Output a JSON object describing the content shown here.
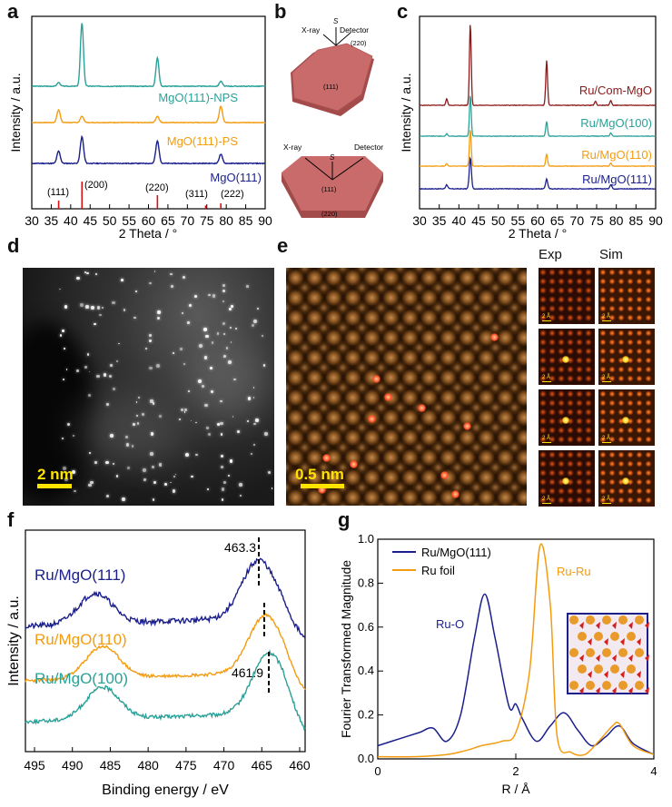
{
  "panel_labels": {
    "a": "a",
    "b": "b",
    "c": "c",
    "d": "d",
    "e": "e",
    "f": "f",
    "g": "g"
  },
  "panel_a": {
    "xlabel": "2 Theta / °",
    "ylabel": "Intensity / a.u.",
    "xticks": [
      "30",
      "35",
      "40",
      "45",
      "50",
      "55",
      "60",
      "65",
      "70",
      "75",
      "80",
      "85",
      "90"
    ],
    "series": [
      {
        "name": "MgO(111)-NPS",
        "color": "#2aa198"
      },
      {
        "name": "MgO(111)-PS",
        "color": "#f39c12"
      },
      {
        "name": "MgO(111)",
        "color": "#1a1f8c"
      }
    ],
    "ref_lines": [
      {
        "hkl": "(111)",
        "x": 36.9,
        "h": 0.3
      },
      {
        "hkl": "(200)",
        "x": 42.9,
        "h": 1.0
      },
      {
        "hkl": "(220)",
        "x": 62.3,
        "h": 0.5
      },
      {
        "hkl": "(311)",
        "x": 74.7,
        "h": 0.12
      },
      {
        "hkl": "(222)",
        "x": 78.6,
        "h": 0.2
      }
    ]
  },
  "panel_b": {
    "top": {
      "xray": "X-ray",
      "s": "S",
      "detector": "Detector",
      "facet_top": "(220)",
      "facet_face": "(111)"
    },
    "bottom": {
      "xray": "X-ray",
      "s": "S",
      "detector": "Detector",
      "facet_face": "(111)",
      "facet_side": "(220)"
    },
    "color": "#c96b6b"
  },
  "panel_c": {
    "xlabel": "2 Theta / °",
    "ylabel": "Intensity / a.u.",
    "xticks": [
      "30",
      "35",
      "40",
      "45",
      "50",
      "55",
      "60",
      "65",
      "70",
      "75",
      "80",
      "85",
      "90"
    ],
    "series": [
      {
        "name": "Ru/Com-MgO",
        "color": "#8b1a1a"
      },
      {
        "name": "Ru/MgO(100)",
        "color": "#2aa198"
      },
      {
        "name": "Ru/MgO(110)",
        "color": "#f39c12"
      },
      {
        "name": "Ru/MgO(111)",
        "color": "#1a1f8c"
      }
    ]
  },
  "panel_d": {
    "scalebar": "2 nm"
  },
  "panel_e": {
    "scalebar": "0.5 nm",
    "exp_label": "Exp",
    "sim_label": "Sim",
    "tile_scale": "2 Å"
  },
  "panel_f": {
    "xlabel": "Binding energy / eV",
    "ylabel": "Intensity / a.u.",
    "xticks": [
      "495",
      "490",
      "485",
      "480",
      "475",
      "470",
      "465",
      "460"
    ],
    "series": [
      {
        "name": "Ru/MgO(111)",
        "color": "#1a1f8c"
      },
      {
        "name": "Ru/MgO(110)",
        "color": "#f39c12"
      },
      {
        "name": "Ru/MgO(100)",
        "color": "#2aa198"
      }
    ],
    "peak_high": "463.3",
    "peak_low": "461.9"
  },
  "panel_g": {
    "xlabel": "R / Å",
    "ylabel": "Fourier Transformed Magnitude",
    "xticks": [
      "0",
      "2",
      "4"
    ],
    "yticks": [
      "0.0",
      "0.2",
      "0.4",
      "0.6",
      "0.8",
      "1.0"
    ],
    "legend": [
      {
        "name": "Ru/MgO(111)",
        "color": "#1a1f8c"
      },
      {
        "name": "Ru foil",
        "color": "#f39c12"
      }
    ],
    "annot_ruo": "Ru-O",
    "annot_ruru": "Ru-Ru"
  },
  "chart_data": [
    {
      "type": "line",
      "panel": "a",
      "xlabel": "2 Theta / °",
      "ylabel": "Intensity / a.u.",
      "xlim": [
        30,
        90
      ],
      "series": [
        {
          "name": "MgO(111)-NPS",
          "peaks": [
            [
              36.9,
              0.06
            ],
            [
              42.9,
              1.0
            ],
            [
              62.3,
              0.45
            ],
            [
              78.6,
              0.08
            ]
          ]
        },
        {
          "name": "MgO(111)-PS",
          "peaks": [
            [
              36.9,
              0.4
            ],
            [
              42.9,
              0.2
            ],
            [
              62.3,
              0.2
            ],
            [
              78.6,
              0.5
            ]
          ]
        },
        {
          "name": "MgO(111)",
          "peaks": [
            [
              36.9,
              0.3
            ],
            [
              42.9,
              0.65
            ],
            [
              62.3,
              0.55
            ],
            [
              78.6,
              0.22
            ]
          ]
        }
      ]
    },
    {
      "type": "line",
      "panel": "c",
      "xlabel": "2 Theta / °",
      "ylabel": "Intensity / a.u.",
      "xlim": [
        30,
        90
      ],
      "series": [
        {
          "name": "Ru/Com-MgO",
          "peaks": [
            [
              36.9,
              0.08
            ],
            [
              42.9,
              1.0
            ],
            [
              62.3,
              0.55
            ],
            [
              74.7,
              0.05
            ],
            [
              78.6,
              0.06
            ]
          ]
        },
        {
          "name": "Ru/MgO(100)",
          "peaks": [
            [
              36.9,
              0.03
            ],
            [
              42.9,
              0.5
            ],
            [
              62.3,
              0.18
            ],
            [
              78.6,
              0.04
            ]
          ]
        },
        {
          "name": "Ru/MgO(110)",
          "peaks": [
            [
              36.9,
              0.03
            ],
            [
              42.9,
              0.45
            ],
            [
              62.3,
              0.15
            ],
            [
              78.6,
              0.04
            ]
          ]
        },
        {
          "name": "Ru/MgO(111)",
          "peaks": [
            [
              36.9,
              0.05
            ],
            [
              42.9,
              0.38
            ],
            [
              62.3,
              0.12
            ],
            [
              78.6,
              0.05
            ]
          ]
        }
      ]
    },
    {
      "type": "line",
      "panel": "f",
      "xlabel": "Binding energy / eV",
      "ylabel": "Intensity / a.u.",
      "xlim": [
        495,
        457
      ],
      "series": [
        {
          "name": "Ru/MgO(111)",
          "peaks": [
            [
              485.5,
              0.45
            ],
            [
              463.3,
              0.85
            ]
          ]
        },
        {
          "name": "Ru/MgO(110)",
          "peaks": [
            [
              484.5,
              0.5
            ],
            [
              462.4,
              0.9
            ]
          ]
        },
        {
          "name": "Ru/MgO(100)",
          "peaks": [
            [
              484.5,
              0.5
            ],
            [
              461.9,
              0.95
            ]
          ]
        }
      ]
    },
    {
      "type": "line",
      "panel": "g",
      "xlabel": "R / Å",
      "ylabel": "Fourier Transformed Magnitude",
      "xlim": [
        0,
        4
      ],
      "ylim": [
        0,
        1
      ],
      "series": [
        {
          "name": "Ru/MgO(111)",
          "x": [
            0,
            0.3,
            0.6,
            0.8,
            1.0,
            1.2,
            1.4,
            1.55,
            1.7,
            1.9,
            2.0,
            2.1,
            2.3,
            2.5,
            2.7,
            2.9,
            3.1,
            3.3,
            3.5,
            3.7,
            4.0
          ],
          "y": [
            0.06,
            0.09,
            0.12,
            0.14,
            0.08,
            0.2,
            0.55,
            0.75,
            0.55,
            0.24,
            0.25,
            0.18,
            0.08,
            0.15,
            0.21,
            0.13,
            0.06,
            0.1,
            0.15,
            0.07,
            0.02
          ]
        },
        {
          "name": "Ru foil",
          "x": [
            0,
            0.5,
            1.0,
            1.3,
            1.5,
            1.8,
            2.0,
            2.2,
            2.35,
            2.5,
            2.6,
            2.8,
            3.0,
            3.2,
            3.4,
            3.5,
            3.7,
            4.0
          ],
          "y": [
            0.01,
            0.01,
            0.02,
            0.04,
            0.06,
            0.08,
            0.12,
            0.4,
            0.97,
            0.7,
            0.1,
            0.03,
            0.02,
            0.08,
            0.15,
            0.16,
            0.06,
            0.02
          ]
        }
      ]
    }
  ]
}
